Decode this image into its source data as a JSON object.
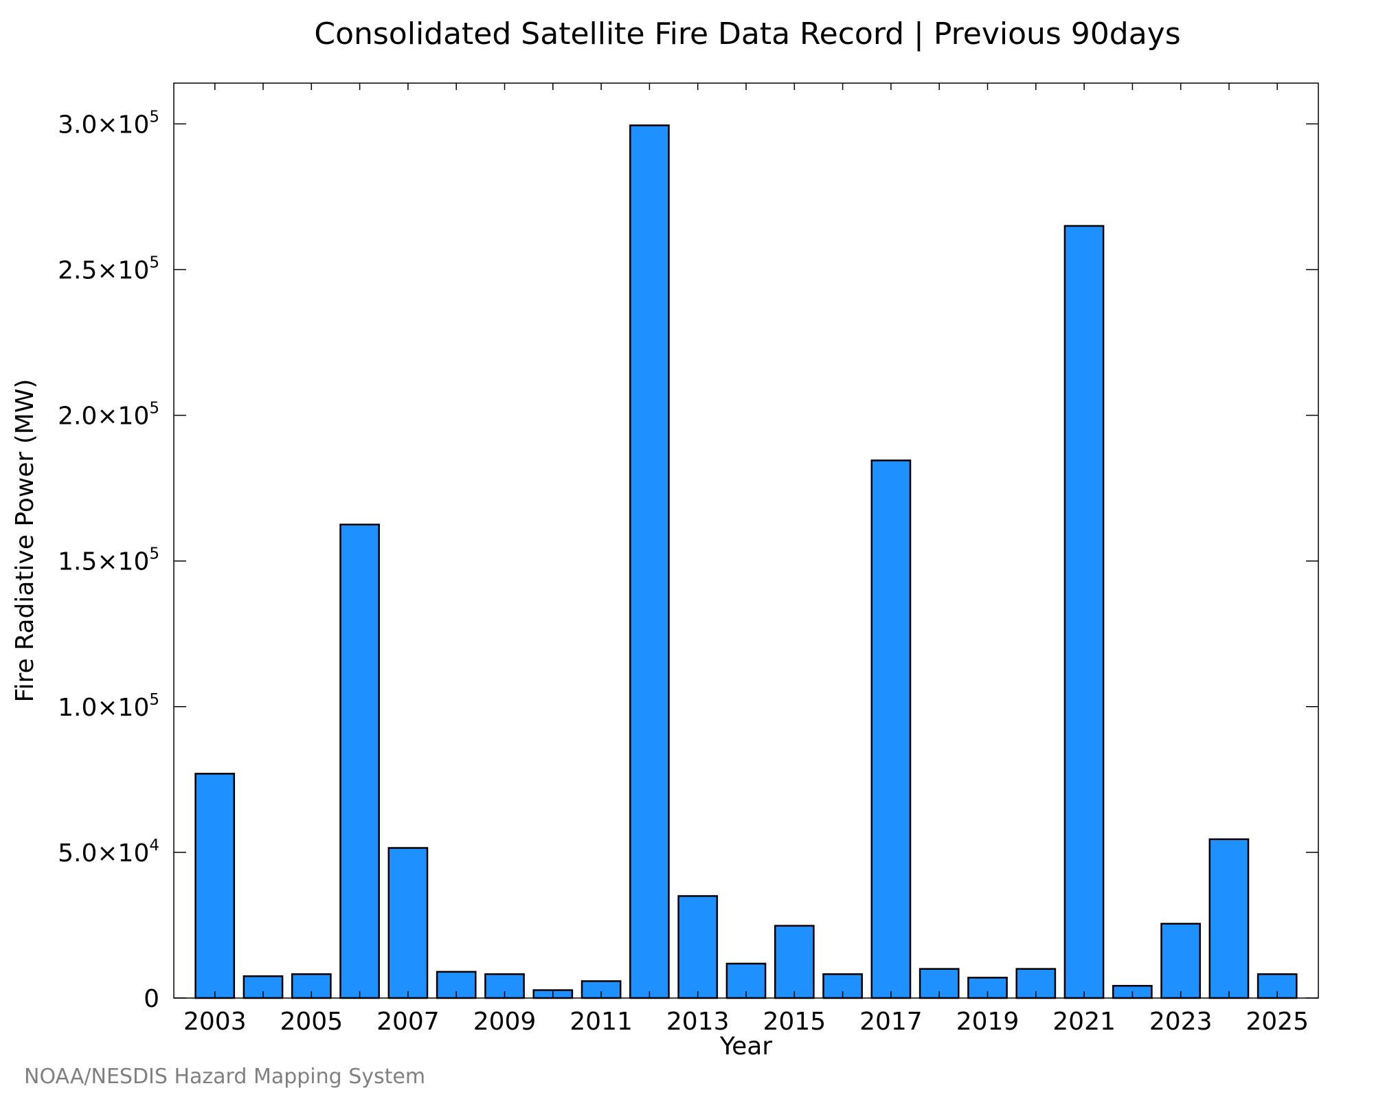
{
  "chart_data": {
    "type": "bar",
    "title": "Consolidated Satellite Fire Data Record | Previous 90days",
    "xlabel": "Year",
    "ylabel": "Fire Radiative Power (MW)",
    "x": [
      2003,
      2004,
      2005,
      2006,
      2007,
      2008,
      2009,
      2010,
      2011,
      2012,
      2013,
      2014,
      2015,
      2016,
      2017,
      2018,
      2019,
      2020,
      2021,
      2022,
      2023,
      2024,
      2025
    ],
    "values": [
      77000,
      7500,
      8200,
      162500,
      51500,
      9000,
      8200,
      2700,
      5800,
      299500,
      35000,
      11800,
      24800,
      8200,
      184500,
      10000,
      7000,
      10000,
      265000,
      4200,
      25500,
      54500,
      8200
    ],
    "xticks": [
      "2003",
      "2005",
      "2007",
      "2009",
      "2011",
      "2013",
      "2015",
      "2017",
      "2019",
      "2021",
      "2023",
      "2025"
    ],
    "xlim": [
      2002.15,
      2025.85
    ],
    "ylim": [
      0,
      314000
    ],
    "yticks": [
      {
        "value": 0,
        "mantissa": "0",
        "exponent": ""
      },
      {
        "value": 50000,
        "mantissa": "5.0×10",
        "exponent": "4"
      },
      {
        "value": 100000,
        "mantissa": "1.0×10",
        "exponent": "5"
      },
      {
        "value": 150000,
        "mantissa": "1.5×10",
        "exponent": "5"
      },
      {
        "value": 200000,
        "mantissa": "2.0×10",
        "exponent": "5"
      },
      {
        "value": 250000,
        "mantissa": "2.5×10",
        "exponent": "5"
      },
      {
        "value": 300000,
        "mantissa": "3.0×10",
        "exponent": "5"
      }
    ],
    "bar_color": "#1e90ff",
    "bar_edge_color": "#000000",
    "grid": false,
    "legend": "none"
  },
  "source_note": "NOAA/NESDIS Hazard Mapping System"
}
